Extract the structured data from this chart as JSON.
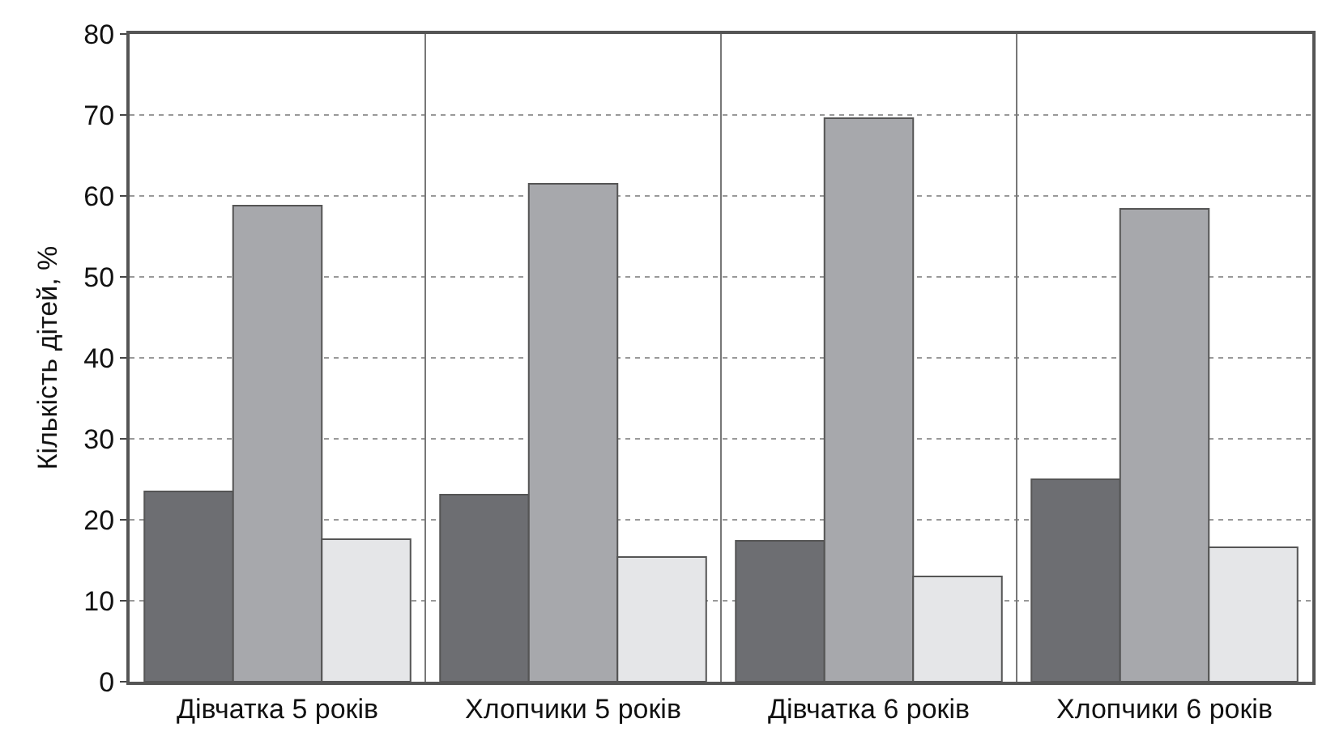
{
  "chart_data": {
    "type": "bar",
    "ylabel": "Кількість дітей, %",
    "categories": [
      "Дівчатка 5 років",
      "Хлопчики 5 років",
      "Дівчатка 6 років",
      "Хлопчики 6 років"
    ],
    "series": [
      {
        "color": "#6d6e72",
        "values": [
          23.5,
          23.1,
          17.4,
          25.0
        ]
      },
      {
        "color": "#a7a8ac",
        "values": [
          58.8,
          61.5,
          69.6,
          58.4
        ]
      },
      {
        "color": "#e5e6e8",
        "values": [
          17.6,
          15.4,
          13.0,
          16.6
        ]
      }
    ],
    "ylim": [
      0,
      80
    ],
    "yticks": [
      0,
      10,
      20,
      30,
      40,
      50,
      60,
      70,
      80
    ],
    "grid": true
  }
}
